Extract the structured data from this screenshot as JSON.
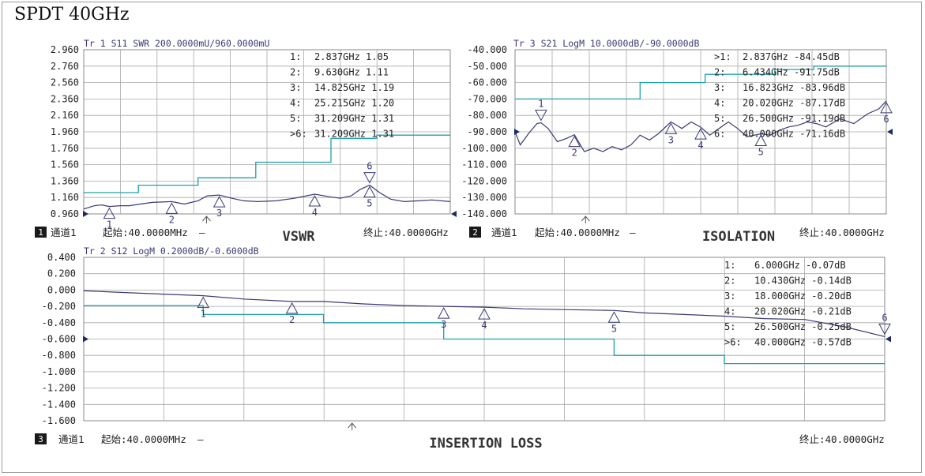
{
  "page_title": "SPDT 40GHz",
  "colors": {
    "trace": "#3a3a78",
    "limit": "#20a0a8",
    "grid": "#a8a8a8",
    "text": "#222222",
    "marker": "#3a3a78"
  },
  "chart_data": [
    {
      "id": "vswr",
      "type": "line",
      "title": "VSWR",
      "trace_header": "Tr 1  S11 SWR 200.0000mU/960.0000mU",
      "channel_badge": "1",
      "channel_label": "通道1",
      "start_label": "起始:40.0000MHz",
      "start_dash": "—",
      "stop_label": "终止:40.0000GHz",
      "x_unit": "GHz",
      "xlim": [
        0.04,
        40
      ],
      "ylim": [
        0.96,
        2.96
      ],
      "y_ticks": [
        "2.960",
        "2.760",
        "2.560",
        "2.360",
        "2.160",
        "1.960",
        "1.760",
        "1.560",
        "1.360",
        "1.160",
        "0.960"
      ],
      "series": [
        {
          "role": "trace",
          "x": [
            0.04,
            1.2,
            2.0,
            2.837,
            4,
            5,
            6.2,
            7.5,
            9.63,
            11,
            12.5,
            13.5,
            14.825,
            16.2,
            17.5,
            19,
            21,
            23,
            25.215,
            26.8,
            28,
            29.2,
            30.2,
            31.209,
            32.3,
            33.5,
            35,
            36.5,
            38,
            40
          ],
          "y": [
            1.02,
            1.06,
            1.07,
            1.05,
            1.06,
            1.06,
            1.08,
            1.1,
            1.11,
            1.08,
            1.12,
            1.18,
            1.19,
            1.15,
            1.12,
            1.11,
            1.12,
            1.15,
            1.2,
            1.17,
            1.15,
            1.18,
            1.26,
            1.31,
            1.22,
            1.14,
            1.11,
            1.12,
            1.13,
            1.11
          ]
        },
        {
          "role": "limit",
          "x": [
            0.04,
            6.0,
            6.0,
            12.5,
            12.5,
            18.8,
            18.8,
            27.0,
            27.0,
            32.0,
            32.0,
            40.0
          ],
          "y": [
            1.22,
            1.22,
            1.31,
            1.31,
            1.4,
            1.4,
            1.59,
            1.59,
            1.88,
            1.88,
            1.92,
            1.92
          ]
        }
      ],
      "markers": [
        {
          "label": "1",
          "x": 2.837,
          "y": 1.05,
          "marker_value": "2.837GHz 1.05",
          "label_below": true
        },
        {
          "label": "2",
          "x": 9.63,
          "y": 1.11,
          "marker_value": "9.630GHz 1.11",
          "label_below": true
        },
        {
          "label": "3",
          "x": 14.825,
          "y": 1.19,
          "marker_value": "14.825GHz 1.19",
          "label_below": true
        },
        {
          "label": "4",
          "x": 25.215,
          "y": 1.2,
          "marker_value": "25.215GHz 1.20",
          "label_below": true
        },
        {
          "label": "5",
          "x": 31.209,
          "y": 1.31,
          "marker_value": "31.209GHz 1.31",
          "label_below": true
        },
        {
          "label": "6",
          "x": 31.209,
          "y": 1.31,
          "marker_value": "31.209GHz 1.31",
          "label_below": false,
          "inverted": true
        }
      ],
      "marker_table_prefixes": [
        "1:",
        "2:",
        "3:",
        "4:",
        "5:",
        ">6:"
      ],
      "marker_table_values": [
        "2.837GHz 1.05",
        "9.630GHz 1.11",
        "14.825GHz 1.19",
        "25.215GHz 1.20",
        "31.209GHz 1.31",
        "31.209GHz 1.31"
      ],
      "ref_level": 0.96
    },
    {
      "id": "isolation",
      "type": "line",
      "title": "ISOLATION",
      "trace_header": "Tr 3  S21 LogM 10.0000dB/-90.0000dB",
      "channel_badge": "2",
      "channel_label": "通道1",
      "start_label": "起始:40.0000MHz",
      "start_dash": "—",
      "stop_label": "终止:40.0000GHz",
      "x_unit": "GHz",
      "xlim": [
        0.04,
        40
      ],
      "ylim": [
        -140,
        -40
      ],
      "y_ticks": [
        "-40.000",
        "-50.000",
        "-60.000",
        "-70.000",
        "-80.000",
        "-90.000",
        "-100.000",
        "-110.000",
        "-120.000",
        "-130.000",
        "-140.000"
      ],
      "series": [
        {
          "role": "trace",
          "x": [
            0.04,
            0.6,
            1.5,
            2.4,
            2.837,
            3.6,
            4.6,
            5.6,
            6.434,
            7.5,
            8.5,
            9.5,
            10.5,
            11.5,
            12.5,
            13.5,
            14.5,
            15.5,
            16.823,
            18,
            19,
            20.02,
            21,
            22,
            23,
            24,
            25,
            26.5,
            27.5,
            28.5,
            29.5,
            30.5,
            31.5,
            32.5,
            33.5,
            35,
            36.5,
            38,
            39.2,
            40
          ],
          "y": [
            -90,
            -98,
            -91,
            -85,
            -84.45,
            -88,
            -96,
            -94,
            -91.75,
            -102,
            -100,
            -102,
            -99,
            -101,
            -98,
            -92,
            -95,
            -91,
            -83.96,
            -88,
            -84,
            -87.17,
            -92,
            -88,
            -84,
            -88,
            -93,
            -91.19,
            -92,
            -89,
            -87,
            -86,
            -84,
            -85,
            -87,
            -82,
            -85,
            -79,
            -76,
            -71.16
          ]
        },
        {
          "role": "limit",
          "x": [
            0.04,
            13.5,
            13.5,
            20.5,
            20.5,
            28.0,
            28.0,
            32.2,
            32.2,
            40.0
          ],
          "y": [
            -70,
            -70,
            -60,
            -60,
            -55,
            -55,
            -52,
            -52,
            -50,
            -50
          ]
        }
      ],
      "markers": [
        {
          "label": "1",
          "x": 2.837,
          "y": -84.45,
          "label_below": false,
          "inverted": true
        },
        {
          "label": "2",
          "x": 6.434,
          "y": -91.75,
          "label_below": true
        },
        {
          "label": "3",
          "x": 16.823,
          "y": -83.96,
          "label_below": true
        },
        {
          "label": "4",
          "x": 20.02,
          "y": -87.17,
          "label_below": true
        },
        {
          "label": "5",
          "x": 26.5,
          "y": -91.19,
          "label_below": true
        },
        {
          "label": "6",
          "x": 40.0,
          "y": -71.16,
          "label_below": true
        }
      ],
      "marker_table_prefixes": [
        ">1:",
        "2:",
        "3:",
        "4:",
        "5:",
        "6:"
      ],
      "marker_table_values": [
        "2.837GHz -84.45dB",
        "6.434GHz -91.75dB",
        "16.823GHz -83.96dB",
        "20.020GHz -87.17dB",
        "26.500GHz -91.19dB",
        "40.000GHz -71.16dB"
      ],
      "ref_level": -90
    },
    {
      "id": "insertion-loss",
      "type": "line",
      "title": "INSERTION LOSS",
      "trace_header": "Tr 2  S12 LogM 0.2000dB/-0.6000dB",
      "channel_badge": "3",
      "channel_label": "通道1",
      "start_label": "起始:40.0000MHz",
      "start_dash": "—",
      "stop_label": "终止:40.0000GHz",
      "x_unit": "GHz",
      "xlim": [
        0.04,
        40
      ],
      "ylim": [
        -1.6,
        0.4
      ],
      "y_ticks": [
        "0.400",
        "0.200",
        "0.000",
        "-0.200",
        "-0.400",
        "-0.600",
        "-0.800",
        "-1.000",
        "-1.200",
        "-1.400",
        "-1.600"
      ],
      "series": [
        {
          "role": "trace",
          "x": [
            0.04,
            2,
            4,
            6,
            8,
            10.43,
            12,
            14,
            16,
            18,
            20.02,
            22,
            24,
            26.5,
            28,
            30,
            32,
            34,
            36,
            38,
            40
          ],
          "y": [
            -0.01,
            -0.03,
            -0.05,
            -0.07,
            -0.11,
            -0.14,
            -0.14,
            -0.17,
            -0.19,
            -0.2,
            -0.21,
            -0.23,
            -0.24,
            -0.25,
            -0.28,
            -0.3,
            -0.32,
            -0.35,
            -0.36,
            -0.45,
            -0.57
          ]
        },
        {
          "role": "limit",
          "x": [
            0.04,
            6.0,
            6.0,
            12.0,
            12.0,
            18.0,
            18.0,
            26.5,
            26.5,
            32.0,
            32.0,
            40.0
          ],
          "y": [
            -0.19,
            -0.19,
            -0.3,
            -0.3,
            -0.4,
            -0.4,
            -0.6,
            -0.6,
            -0.8,
            -0.8,
            -0.9,
            -0.9
          ]
        }
      ],
      "markers": [
        {
          "label": "1",
          "x": 6.0,
          "y": -0.07,
          "label_below": true
        },
        {
          "label": "2",
          "x": 10.43,
          "y": -0.14,
          "label_below": true
        },
        {
          "label": "3",
          "x": 18.0,
          "y": -0.2,
          "label_below": true
        },
        {
          "label": "4",
          "x": 20.02,
          "y": -0.21,
          "label_below": true
        },
        {
          "label": "5",
          "x": 26.5,
          "y": -0.25,
          "label_below": true
        },
        {
          "label": "6",
          "x": 40.0,
          "y": -0.57,
          "label_below": false,
          "inverted": true
        }
      ],
      "marker_table_prefixes": [
        "1:",
        "2:",
        "3:",
        "4:",
        "5:",
        ">6:"
      ],
      "marker_table_values": [
        "6.000GHz -0.07dB",
        "10.430GHz -0.14dB",
        "18.000GHz -0.20dB",
        "20.020GHz -0.21dB",
        "26.500GHz -0.25dB",
        "40.000GHz -0.57dB"
      ],
      "ref_level": -0.6
    }
  ]
}
